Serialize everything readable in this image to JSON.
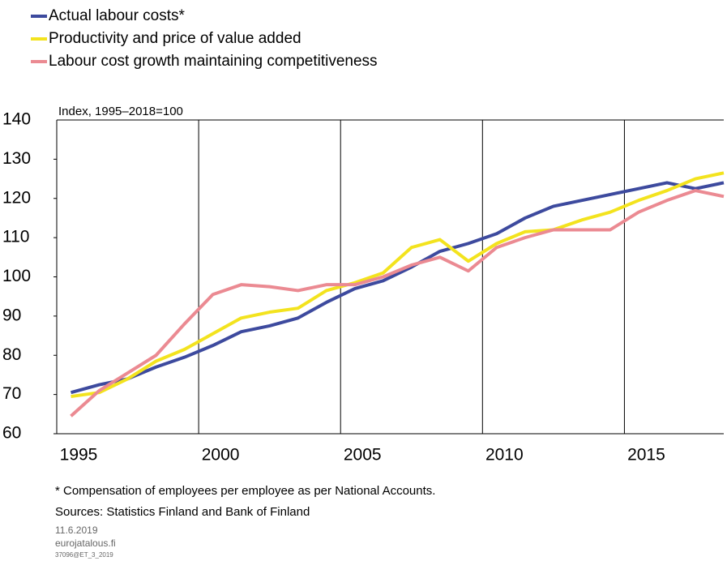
{
  "chart_data": {
    "type": "line",
    "y_label": "Index, 1995–2018=100",
    "categories": [
      "1995",
      null,
      null,
      null,
      null,
      "2000",
      null,
      null,
      null,
      null,
      "2005",
      null,
      null,
      null,
      null,
      "2010",
      null,
      null,
      null,
      null,
      "2015",
      null,
      null,
      null
    ],
    "series": [
      {
        "name": "Actual labour costs*",
        "color": "#3d4a9e",
        "values": [
          70.5,
          72.5,
          74,
          77,
          79.5,
          82.5,
          86,
          87.5,
          89.5,
          93.5,
          97,
          99,
          102.5,
          106.5,
          108.5,
          111,
          115,
          118,
          119.5,
          121,
          122.5,
          124,
          122.5,
          124
        ]
      },
      {
        "name": "Productivity and price of value added",
        "color": "#f3e31e",
        "values": [
          69.5,
          70.5,
          74,
          78.5,
          81.5,
          85.5,
          89.5,
          91,
          92,
          96.5,
          98.5,
          101,
          107.5,
          109.5,
          104,
          108.5,
          111.5,
          112,
          114.5,
          116.5,
          119.5,
          122,
          125,
          126.5
        ]
      },
      {
        "name": "Labour cost growth maintaining competitiveness",
        "color": "#eb8a92",
        "values": [
          64.5,
          71,
          75.5,
          80,
          88,
          95.5,
          98,
          97.5,
          96.5,
          98,
          98,
          100,
          103,
          105,
          101.5,
          107.5,
          110,
          112,
          112,
          112,
          116.5,
          119.5,
          122,
          120.5
        ]
      }
    ],
    "ylim": [
      60,
      140
    ],
    "yticks": [
      60,
      70,
      80,
      90,
      100,
      110,
      120,
      130,
      140
    ],
    "grid": true,
    "footnote": "* Compensation of employees per employee as per National Accounts.",
    "sources": "Sources: Statistics Finland and Bank of Finland",
    "date": "11.6.2019",
    "site": "eurojatalous.fi",
    "code": "37096@ET_3_2019"
  }
}
